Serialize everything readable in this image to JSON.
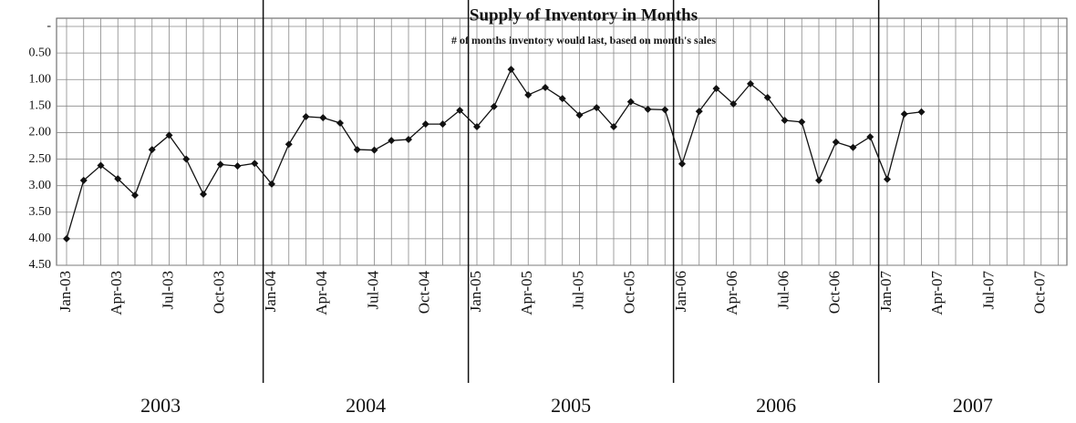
{
  "chart_data": {
    "type": "line",
    "title": "Supply of Inventory in Months",
    "subtitle": "# of months inventory would last, based on month's sales",
    "categories": [
      "Jan-03",
      null,
      null,
      "Apr-03",
      null,
      null,
      "Jul-03",
      null,
      null,
      "Oct-03",
      null,
      null,
      "Jan-04",
      null,
      null,
      "Apr-04",
      null,
      null,
      "Jul-04",
      null,
      null,
      "Oct-04",
      null,
      null,
      "Jan-05",
      null,
      null,
      "Apr-05",
      null,
      null,
      "Jul-05",
      null,
      null,
      "Oct-05",
      null,
      null,
      "Jan-06",
      null,
      null,
      "Apr-06",
      null,
      null,
      "Jul-06",
      null,
      null,
      "Oct-06",
      null,
      null,
      "Jan-07",
      null,
      null,
      "Apr-07",
      null,
      null,
      "Jul-07",
      null,
      null,
      "Oct-07",
      null
    ],
    "series": [
      {
        "name": "Supply of Inventory",
        "color": "#111111",
        "values": [
          4.0,
          2.9,
          2.62,
          2.87,
          3.18,
          2.32,
          2.05,
          2.5,
          3.16,
          2.6,
          2.63,
          2.58,
          2.97,
          2.22,
          1.7,
          1.72,
          1.82,
          2.32,
          2.33,
          2.15,
          2.13,
          1.84,
          1.84,
          1.58,
          1.89,
          1.51,
          0.81,
          1.29,
          1.15,
          1.36,
          1.67,
          1.53,
          1.89,
          1.42,
          1.56,
          1.57,
          2.59,
          1.6,
          1.17,
          1.46,
          1.08,
          1.34,
          1.77,
          1.8,
          2.9,
          2.18,
          2.28,
          2.08,
          2.88,
          1.65,
          1.61,
          null,
          null,
          null,
          null,
          null,
          null,
          null,
          null
        ]
      }
    ],
    "year_labels": [
      "2003",
      "2004",
      "2005",
      "2006",
      "2007"
    ],
    "ylim": [
      0,
      4.5
    ],
    "y_inverted": true,
    "yticks": [
      {
        "value": 0,
        "label": "-"
      },
      {
        "value": 0.5,
        "label": "0.50"
      },
      {
        "value": 1,
        "label": "1.00"
      },
      {
        "value": 1.5,
        "label": "1.50"
      },
      {
        "value": 2,
        "label": "2.00"
      },
      {
        "value": 2.5,
        "label": "2.50"
      },
      {
        "value": 3,
        "label": "3.00"
      },
      {
        "value": 3.5,
        "label": "3.50"
      },
      {
        "value": 4,
        "label": "4.00"
      },
      {
        "value": 4.5,
        "label": "4.50"
      }
    ],
    "grid": true
  }
}
